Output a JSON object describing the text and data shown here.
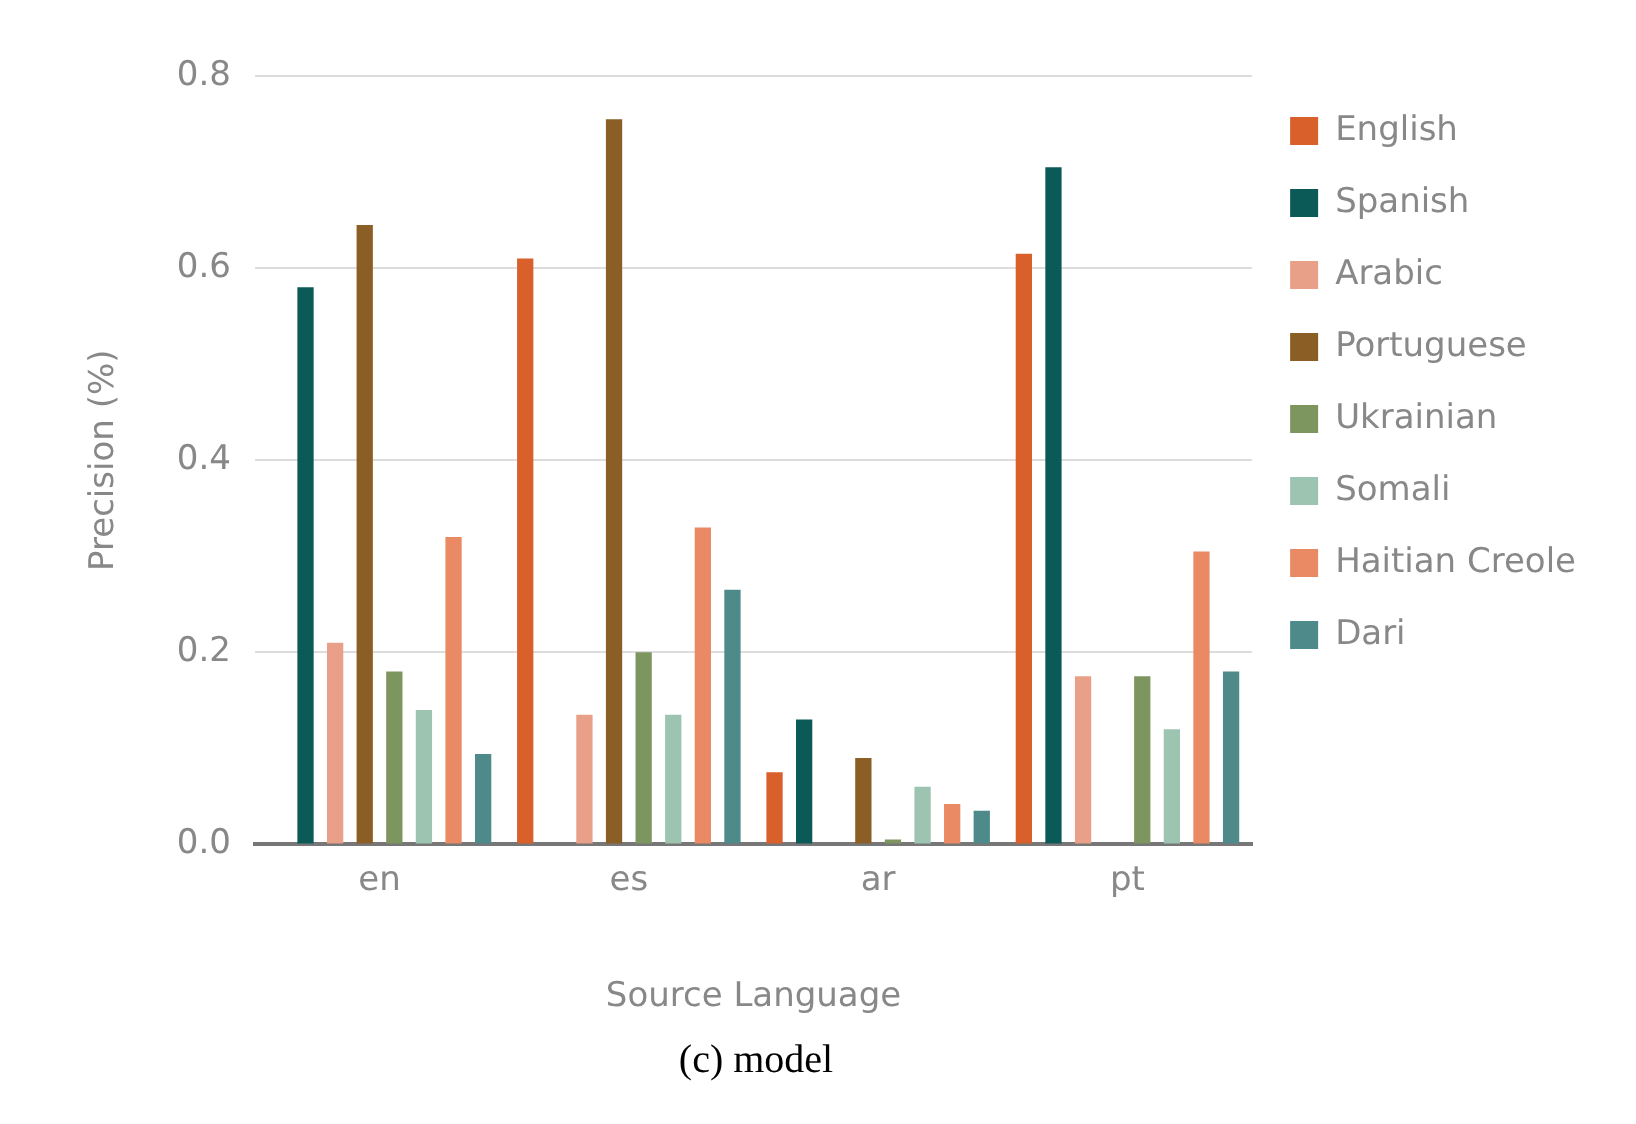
{
  "chart_data": {
    "type": "bar",
    "xlabel": "Source Language",
    "ylabel": "Precision (%)",
    "categories": [
      "en",
      "es",
      "ar",
      "pt"
    ],
    "series": [
      {
        "name": "English",
        "color": "#d95f2b",
        "values": [
          null,
          0.61,
          0.075,
          0.615
        ]
      },
      {
        "name": "Spanish",
        "color": "#0b5a57",
        "values": [
          0.58,
          null,
          0.13,
          0.705
        ]
      },
      {
        "name": "Arabic",
        "color": "#e8a088",
        "values": [
          0.21,
          0.135,
          null,
          0.175
        ]
      },
      {
        "name": "Portuguese",
        "color": "#8b5e25",
        "values": [
          0.645,
          0.755,
          0.09,
          null
        ]
      },
      {
        "name": "Ukrainian",
        "color": "#7d9660",
        "values": [
          0.18,
          0.2,
          0.005,
          0.175
        ]
      },
      {
        "name": "Somali",
        "color": "#9cc4b0",
        "values": [
          0.14,
          0.135,
          0.06,
          0.12
        ]
      },
      {
        "name": "Haitian Creole",
        "color": "#e98a64",
        "values": [
          0.32,
          0.33,
          0.042,
          0.305
        ]
      },
      {
        "name": "Dari",
        "color": "#4e8a8a",
        "values": [
          0.094,
          0.265,
          0.035,
          0.18
        ]
      }
    ],
    "ylim": [
      0,
      0.8
    ],
    "yticks": [
      {
        "value": 0,
        "label": "0.0"
      },
      {
        "value": 0.2,
        "label": "0.2"
      },
      {
        "value": 0.4,
        "label": "0.4"
      },
      {
        "value": 0.6,
        "label": "0.6"
      },
      {
        "value": 0.8,
        "label": "0.8"
      }
    ],
    "grid": "y",
    "legend": "right",
    "annotations": [
      "(c) model"
    ]
  }
}
